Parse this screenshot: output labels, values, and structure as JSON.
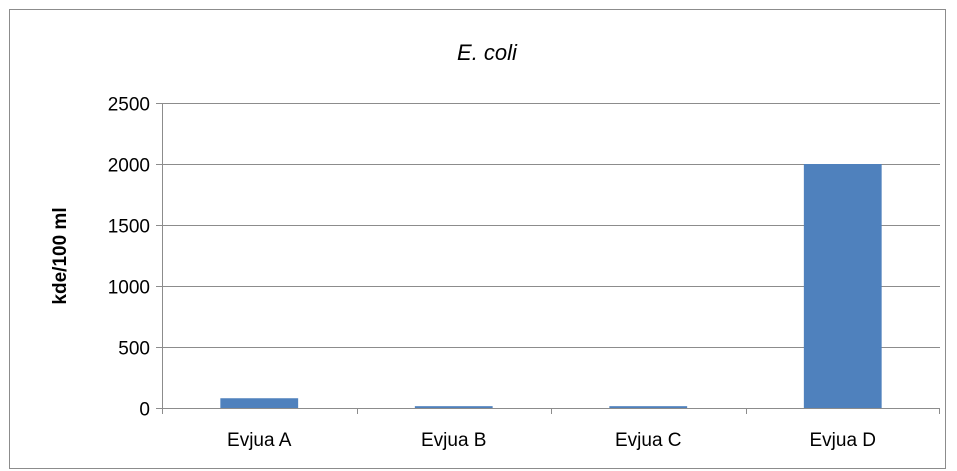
{
  "chart_data": {
    "type": "bar",
    "title": "E. coli",
    "xlabel": "",
    "ylabel": "kde/100 ml",
    "categories": [
      "Evjua A",
      "Evjua B",
      "Evjua C",
      "Evjua D"
    ],
    "values": [
      80,
      15,
      15,
      2000
    ],
    "ylim": [
      0,
      2500
    ],
    "yticks": [
      0,
      500,
      1000,
      1500,
      2000,
      2500
    ],
    "grid": true,
    "legend": "none",
    "bar_color": "#4f81bd",
    "grid_color": "#8c8c8c"
  }
}
